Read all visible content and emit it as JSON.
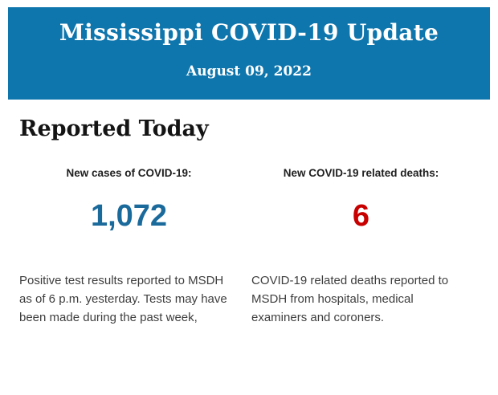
{
  "header": {
    "title": "Mississippi COVID-19 Update",
    "date": "August 09, 2022"
  },
  "section": {
    "heading": "Reported Today"
  },
  "stats": {
    "cases": {
      "label": "New cases of COVID-19:",
      "value": "1,072",
      "value_color": "#1b6a9c",
      "description": "Positive test results reported to MSDH as of 6 p.m. yesterday. Tests may have been made during the past week,"
    },
    "deaths": {
      "label": "New COVID-19 related deaths:",
      "value": "6",
      "value_color": "#c80000",
      "description": "COVID-19 related deaths reported to MSDH from hospitals, medical examiners and coroners."
    }
  },
  "colors": {
    "banner_blue": "#0f76ad",
    "cases_blue": "#1b6a9c",
    "deaths_red": "#c80000",
    "background": "#ffffff"
  }
}
